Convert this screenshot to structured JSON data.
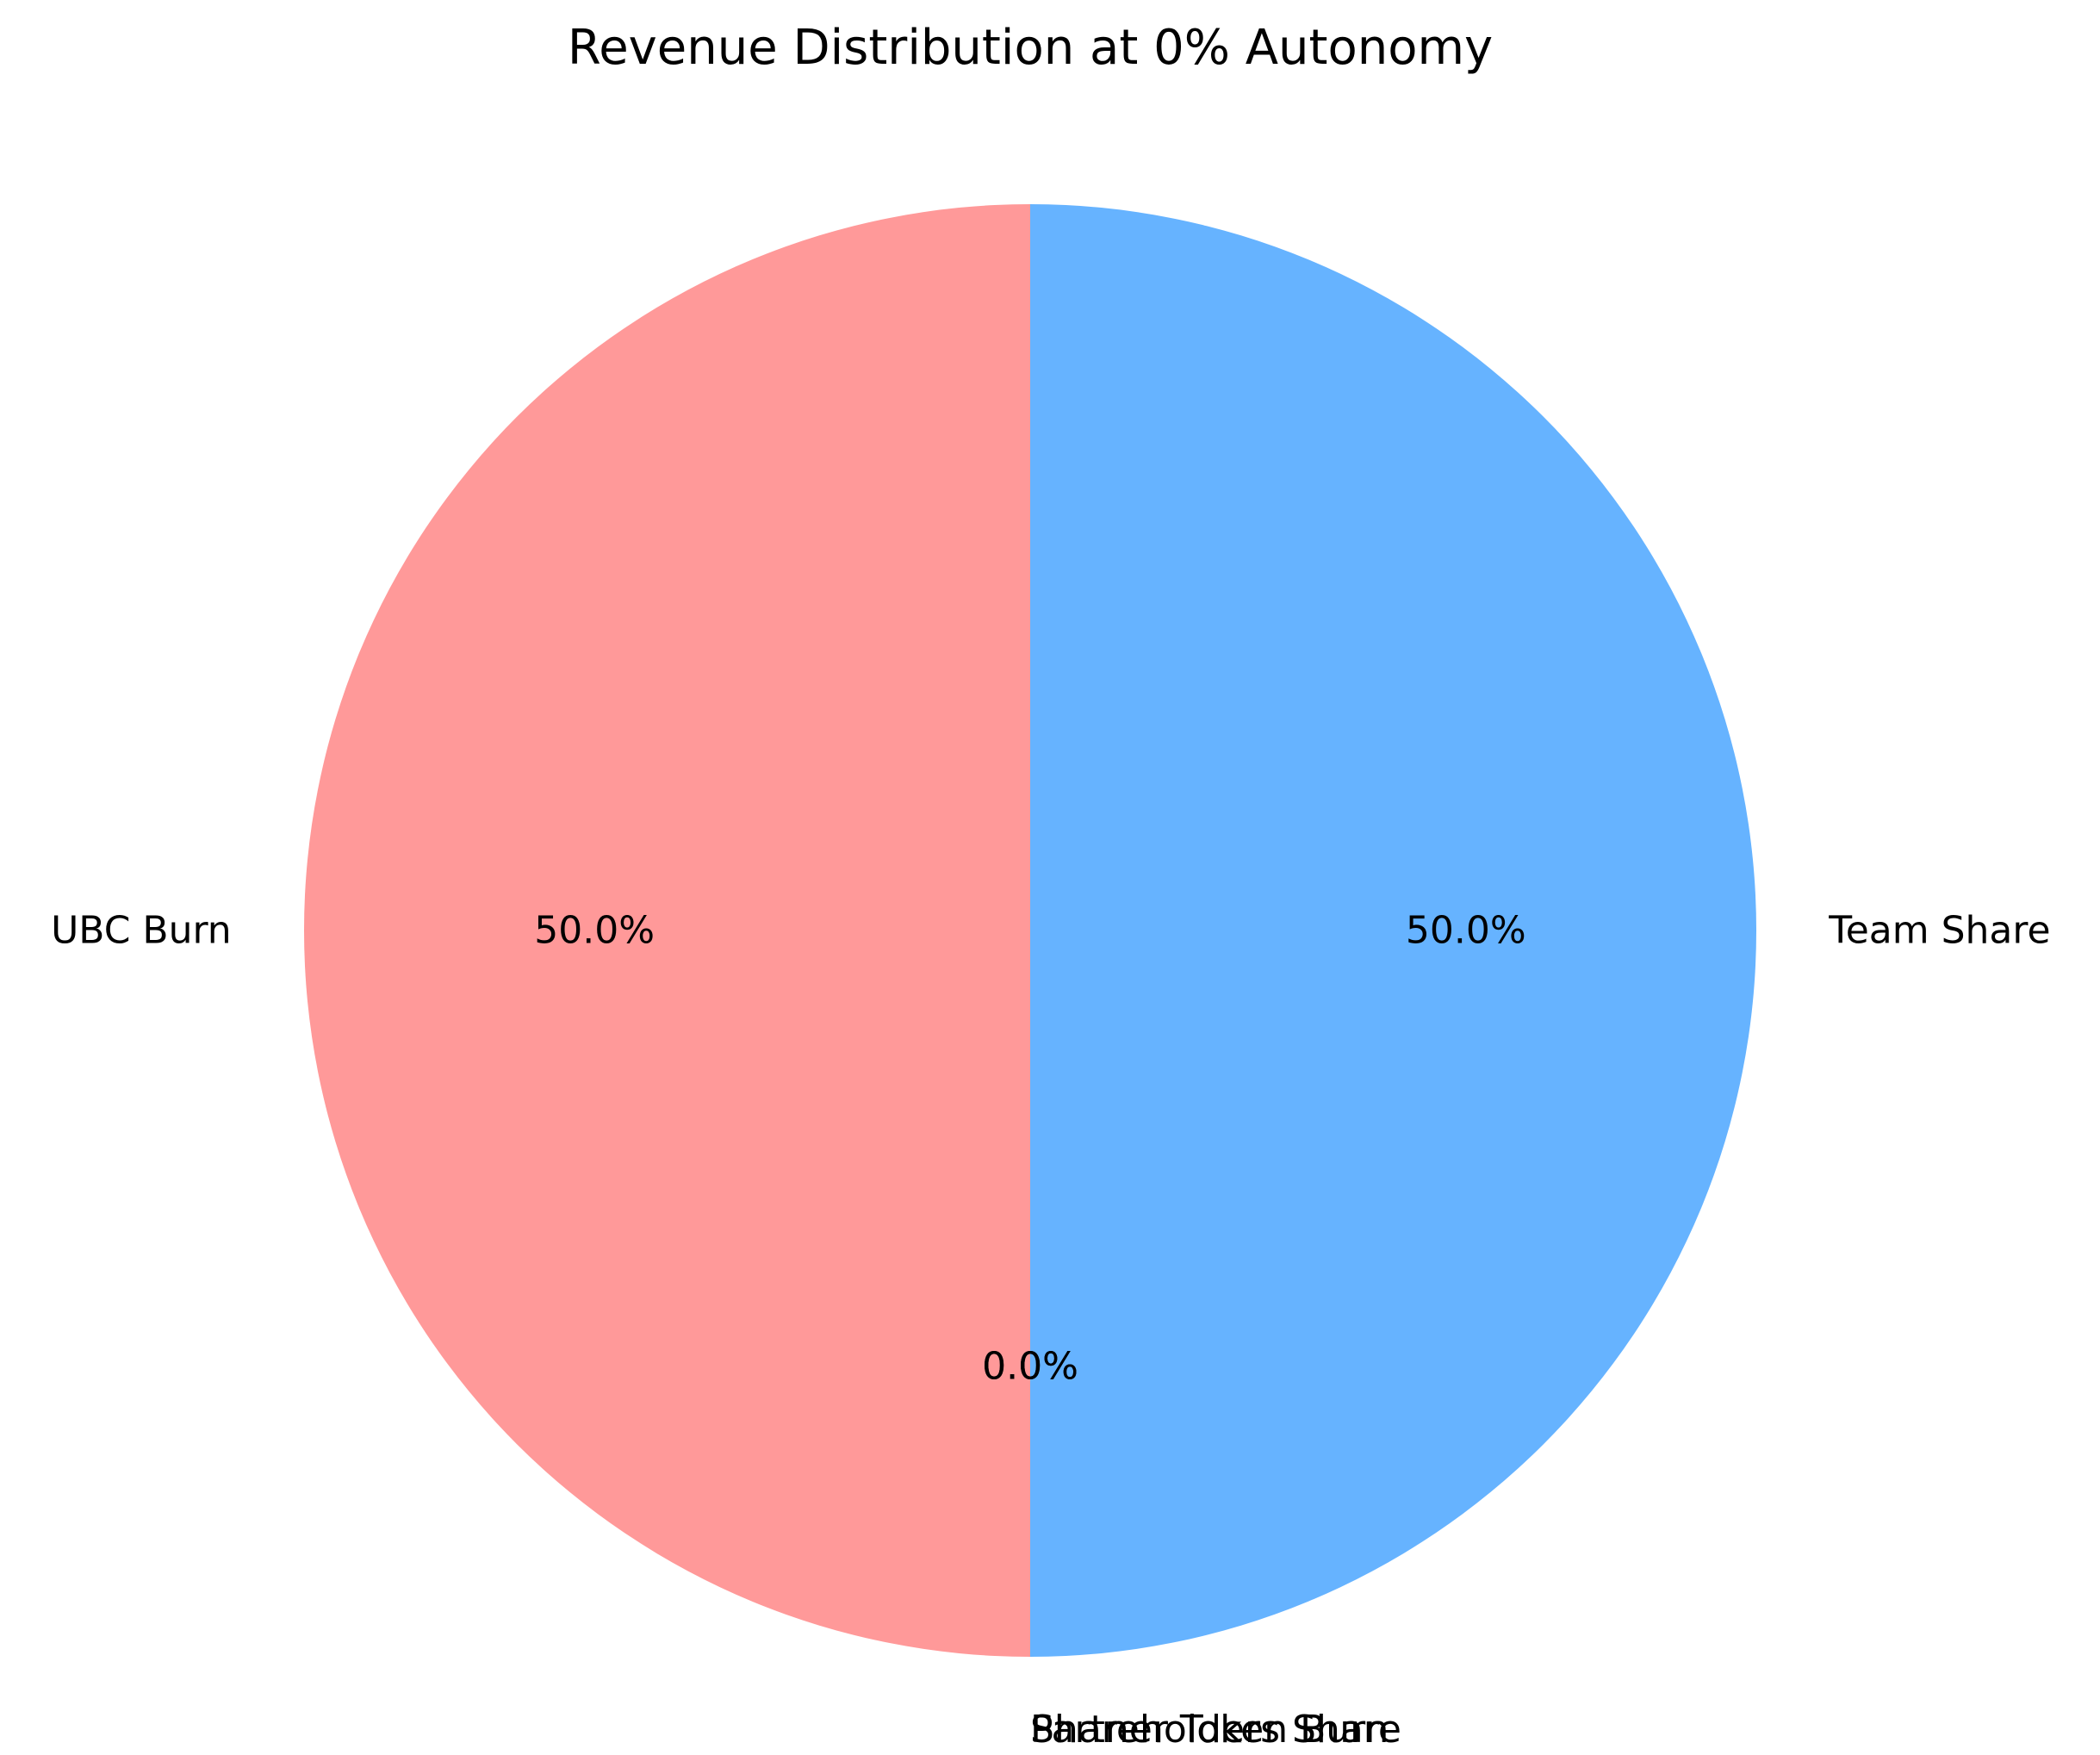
{
  "chart_data": {
    "type": "pie",
    "title": "Revenue Distribution at 0% Autonomy",
    "start_angle_deg": 90,
    "counterclock": true,
    "slices": [
      {
        "label": "UBC Burn",
        "value": 50.0,
        "pct_label": "50.0%",
        "color": "#ff9999"
      },
      {
        "label": "Partner Token Burn",
        "value": 0.0,
        "pct_label": "0.0%",
        "color": "#99ff99"
      },
      {
        "label": "Shareholders Share",
        "value": 0.0,
        "pct_label": "0.0%",
        "color": "#ffcc99"
      },
      {
        "label": "Team Share",
        "value": 50.0,
        "pct_label": "50.0%",
        "color": "#66b3ff"
      }
    ]
  }
}
